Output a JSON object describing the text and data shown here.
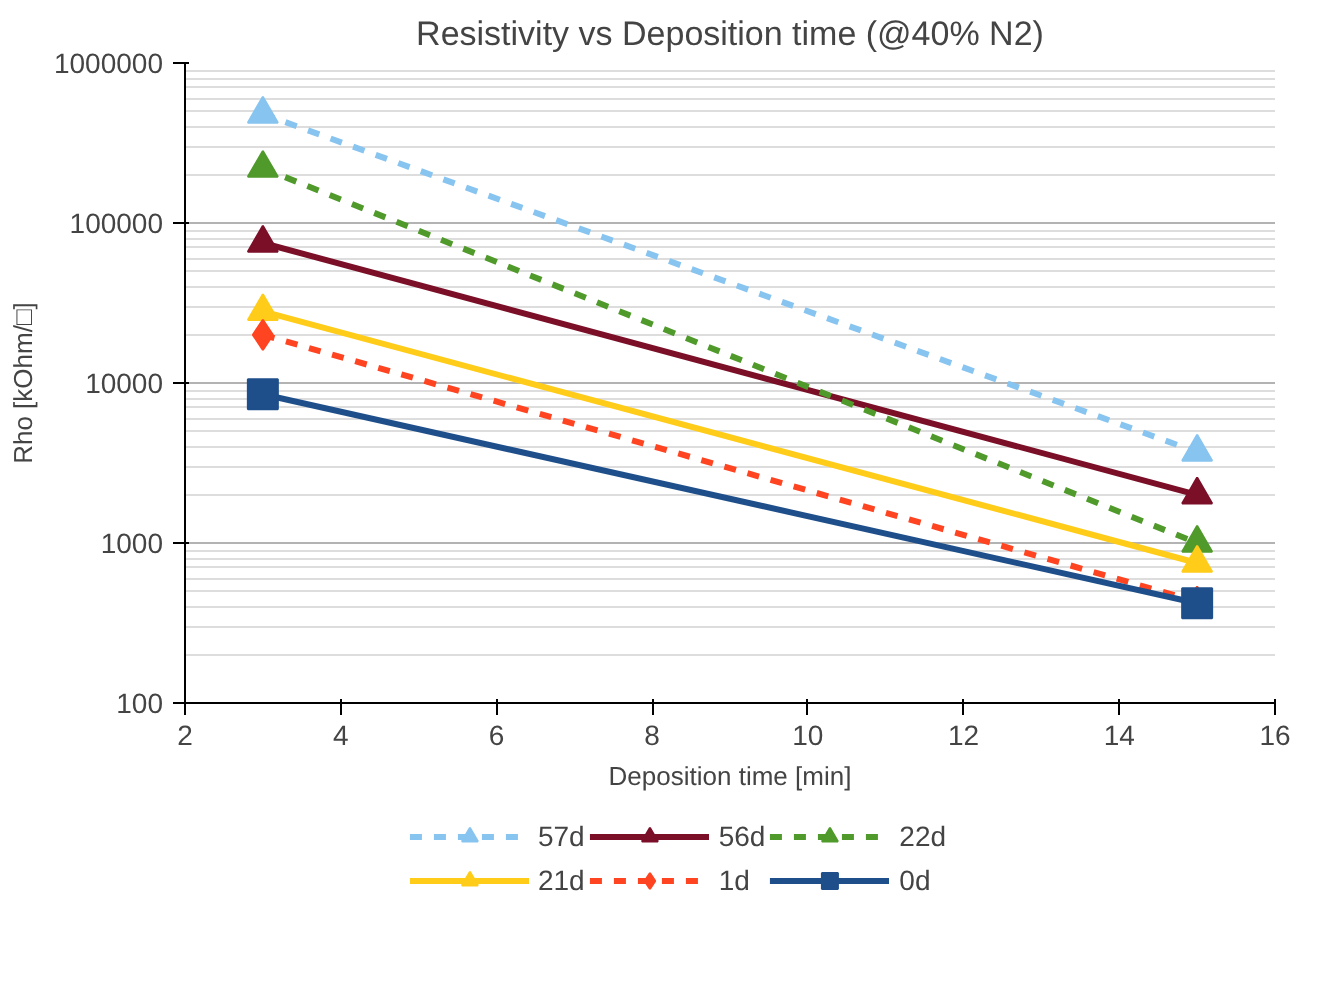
{
  "chart_data": {
    "type": "line",
    "title": "Resistivity vs Deposition time (@40% N2)",
    "xlabel": "Deposition time [min]",
    "ylabel": "Rho [kOhm/□]",
    "x": [
      3,
      15
    ],
    "log": "y",
    "xlim": [
      2,
      16
    ],
    "xticks": [
      2,
      4,
      6,
      8,
      10,
      12,
      14,
      16
    ],
    "ylim": [
      100,
      1000000
    ],
    "yticks": [
      100,
      1000,
      10000,
      100000,
      1000000
    ],
    "grid": "y",
    "legend": "bottom",
    "series": [
      {
        "name": "57d",
        "color": "#87c4f0",
        "values": [
          480000,
          3700
        ],
        "marker": "triangle",
        "line_style": "dashed"
      },
      {
        "name": "56d",
        "color": "#7b0f28",
        "values": [
          75000,
          2000
        ],
        "marker": "triangle",
        "line_style": "solid"
      },
      {
        "name": "22d",
        "color": "#4f9a2a",
        "values": [
          220000,
          1000
        ],
        "marker": "triangle",
        "line_style": "dashed"
      },
      {
        "name": "21d",
        "color": "#ffcc1a",
        "values": [
          28000,
          750
        ],
        "marker": "triangle",
        "line_style": "solid"
      },
      {
        "name": "1d",
        "color": "#ff4422",
        "values": [
          20000,
          430
        ],
        "marker": "diamond",
        "line_style": "dashed"
      },
      {
        "name": "0d",
        "color": "#1f4f8a",
        "values": [
          8500,
          420
        ],
        "marker": "square",
        "line_style": "solid"
      }
    ]
  }
}
